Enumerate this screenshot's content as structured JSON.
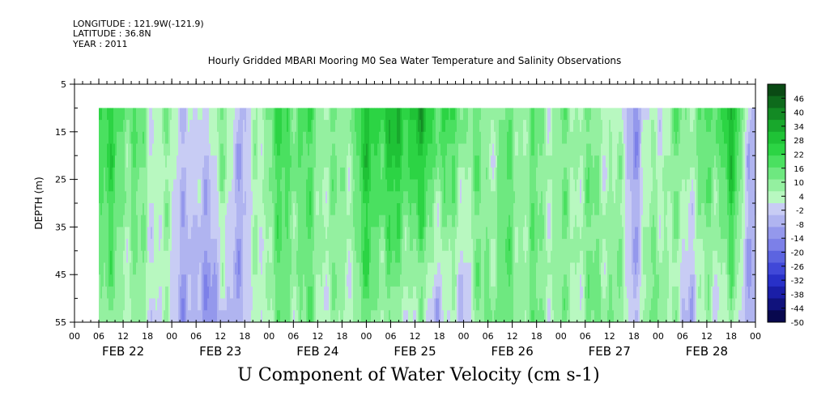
{
  "header": {
    "longitude": "LONGITUDE : 121.9W(-121.9)",
    "latitude": "LATITUDE : 36.8N",
    "year": "YEAR : 2011"
  },
  "chart_data": {
    "type": "heatmap",
    "title": "Hourly Gridded MBARI Mooring M0 Sea Water Temperature and Salinity Observations",
    "xlabel": "U Component of Water Velocity (cm s-1)",
    "ylabel": "DEPTH (m)",
    "ylim": [
      55,
      5
    ],
    "y_ticks": [
      5,
      15,
      25,
      35,
      45,
      55
    ],
    "x_hour_ticks": [
      "00",
      "06",
      "12",
      "18",
      "00",
      "06",
      "12",
      "18",
      "00",
      "06",
      "12",
      "18",
      "00",
      "06",
      "12",
      "18",
      "00",
      "06",
      "12",
      "18",
      "00",
      "06",
      "12",
      "18",
      "00",
      "06",
      "12",
      "18",
      "00"
    ],
    "x_day_labels": [
      "FEB 22",
      "FEB 23",
      "FEB 24",
      "FEB 25",
      "FEB 26",
      "FEB 27",
      "FEB 28"
    ],
    "data_depth_range_m": [
      10,
      55
    ],
    "data_start": "FEB 22 06:00",
    "data_end": "FEB 29 00:00",
    "colorbar_levels": [
      46,
      40,
      34,
      28,
      22,
      16,
      10,
      4,
      -2,
      -8,
      -14,
      -20,
      -26,
      -32,
      -38,
      -44,
      -50
    ],
    "colorbar_range": [
      -50,
      52
    ],
    "colorbar_colors_high_to_low": [
      "#0a4a14",
      "#0e6a1c",
      "#138a24",
      "#18a82c",
      "#1fc236",
      "#2cd444",
      "#4ae060",
      "#6ee880",
      "#94f0a0",
      "#b8f8c0",
      "#c8ccf4",
      "#b0b4f0",
      "#9498ec",
      "#7c80e8",
      "#5c64e0",
      "#4048d8",
      "#2830c8",
      "#1a1ea8",
      "#10127c",
      "#08084e"
    ],
    "u_velocity_by_time_hourly_approx": {
      "note_free": true,
      "profile_times": [
        "FEB 22 06:00",
        "FEB 22 12:00",
        "FEB 22 18:00",
        "FEB 23 00:00",
        "FEB 23 06:00",
        "FEB 23 12:00",
        "FEB 23 18:00",
        "FEB 24 00:00",
        "FEB 24 06:00",
        "FEB 24 12:00",
        "FEB 24 18:00",
        "FEB 25 00:00",
        "FEB 25 06:00",
        "FEB 25 12:00",
        "FEB 25 18:00",
        "FEB 26 00:00",
        "FEB 26 06:00",
        "FEB 26 12:00",
        "FEB 26 18:00",
        "FEB 27 00:00",
        "FEB 27 06:00",
        "FEB 27 12:00",
        "FEB 27 18:00",
        "FEB 28 00:00",
        "FEB 28 06:00",
        "FEB 28 12:00",
        "FEB 28 18:00",
        "FEB 29 00:00"
      ],
      "surface_10m": [
        22,
        18,
        8,
        4,
        -4,
        10,
        -6,
        16,
        20,
        12,
        8,
        26,
        28,
        30,
        22,
        14,
        8,
        12,
        10,
        8,
        10,
        6,
        -8,
        4,
        12,
        14,
        30,
        -12
      ],
      "bottom_55m": [
        10,
        6,
        4,
        -2,
        -12,
        -8,
        -4,
        8,
        10,
        8,
        4,
        12,
        6,
        2,
        -4,
        -2,
        14,
        12,
        10,
        6,
        8,
        14,
        -2,
        16,
        -6,
        2,
        4,
        -10
      ]
    }
  }
}
